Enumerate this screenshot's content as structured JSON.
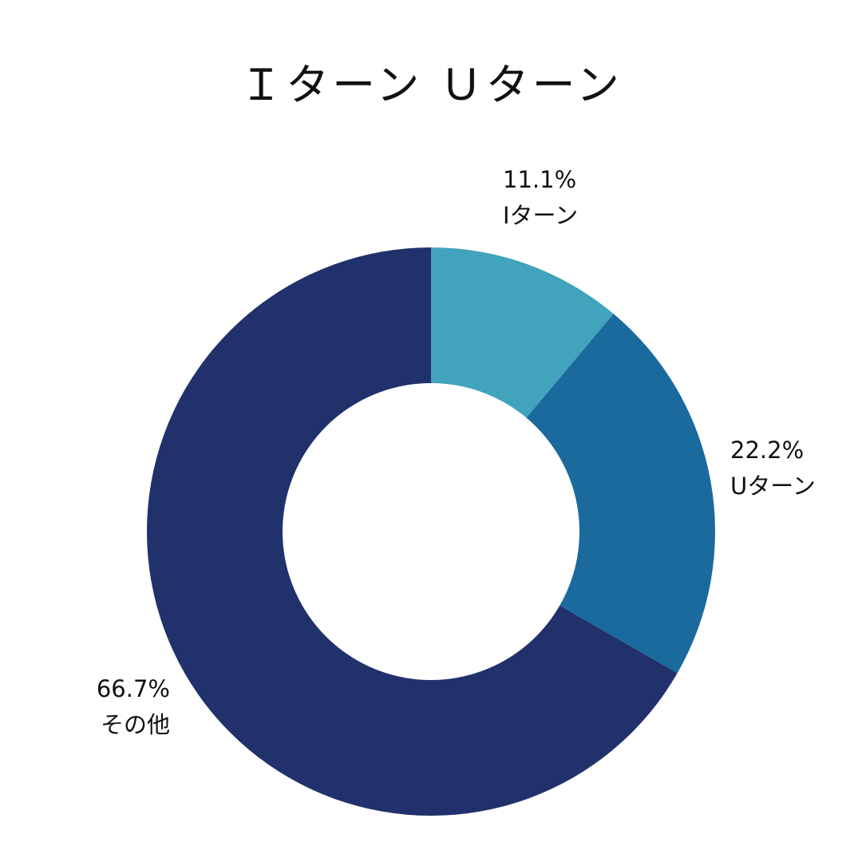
{
  "chart_data": {
    "type": "pie",
    "variant": "donut",
    "title": "Ｉターン Ｕターン",
    "start": "top",
    "direction": "clockwise",
    "slices": [
      {
        "label": "Iターン",
        "value": 11.1,
        "value_label": "11.1%",
        "color": "#41A3BC"
      },
      {
        "label": "Uターン",
        "value": 22.2,
        "value_label": "22.2%",
        "color": "#1A6A9D"
      },
      {
        "label": "その他",
        "value": 66.7,
        "value_label": "66.7%",
        "color": "#21316C"
      }
    ],
    "legend": "none"
  }
}
